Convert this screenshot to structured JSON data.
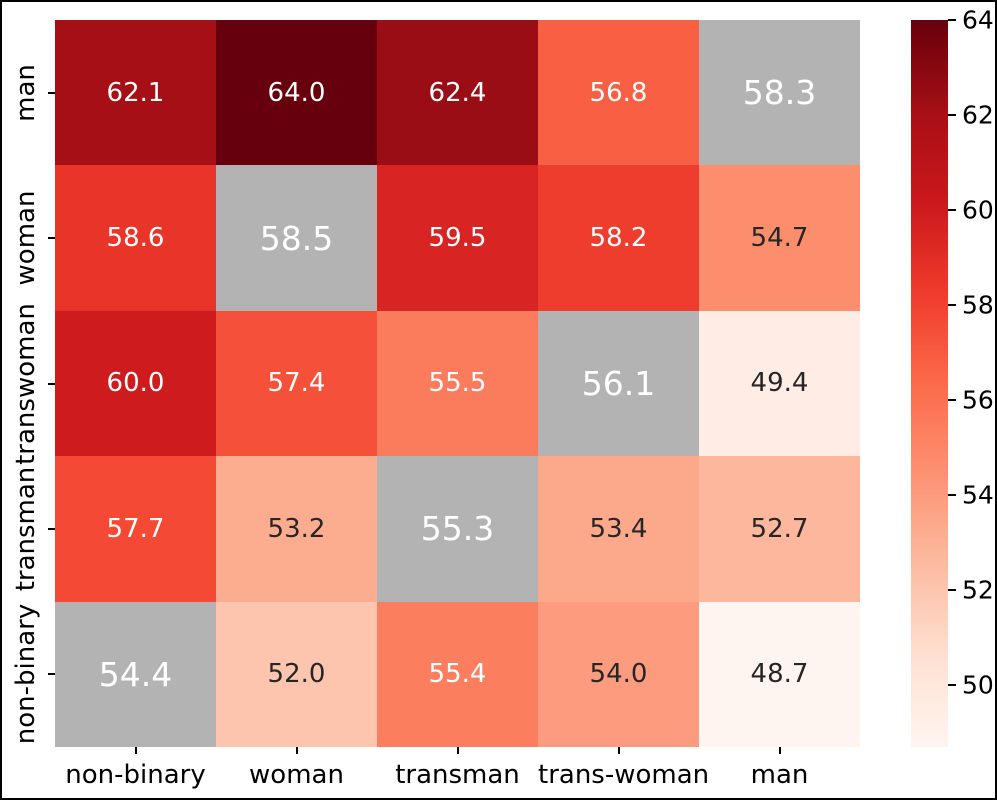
{
  "chart_data": {
    "type": "heatmap",
    "title": "",
    "x_labels": [
      "non-binary",
      "woman",
      "transman",
      "trans-woman",
      "man"
    ],
    "y_labels": [
      "man",
      "woman",
      "transwoman",
      "transman",
      "non-binary"
    ],
    "values": [
      [
        62.1,
        64.0,
        62.4,
        56.8,
        58.3
      ],
      [
        58.6,
        58.5,
        59.5,
        58.2,
        54.7
      ],
      [
        60.0,
        57.4,
        55.5,
        56.1,
        49.4
      ],
      [
        57.7,
        53.2,
        55.3,
        53.4,
        52.7
      ],
      [
        54.4,
        52.0,
        55.4,
        54.0,
        48.7
      ]
    ],
    "annotation_format": "one-decimal",
    "gray_cells": [
      [
        0,
        4
      ],
      [
        1,
        1
      ],
      [
        2,
        3
      ],
      [
        3,
        2
      ],
      [
        4,
        0
      ]
    ],
    "vmin": 48.7,
    "vmax": 64.0,
    "colormap": "Reds",
    "colormap_stops": [
      "#fff5f0",
      "#fee0d2",
      "#fcbba1",
      "#fc9272",
      "#fb6a4a",
      "#ef3b2c",
      "#cb181d",
      "#a50f15",
      "#67000d"
    ],
    "mask_color": "#b3b3b3",
    "annotation_color_light": "#ffffff",
    "annotation_color_dark": "#262626",
    "colorbar_ticks": [
      64,
      62,
      60,
      58,
      56,
      54,
      52,
      50
    ],
    "colorbar_position": "right",
    "grid": false
  }
}
